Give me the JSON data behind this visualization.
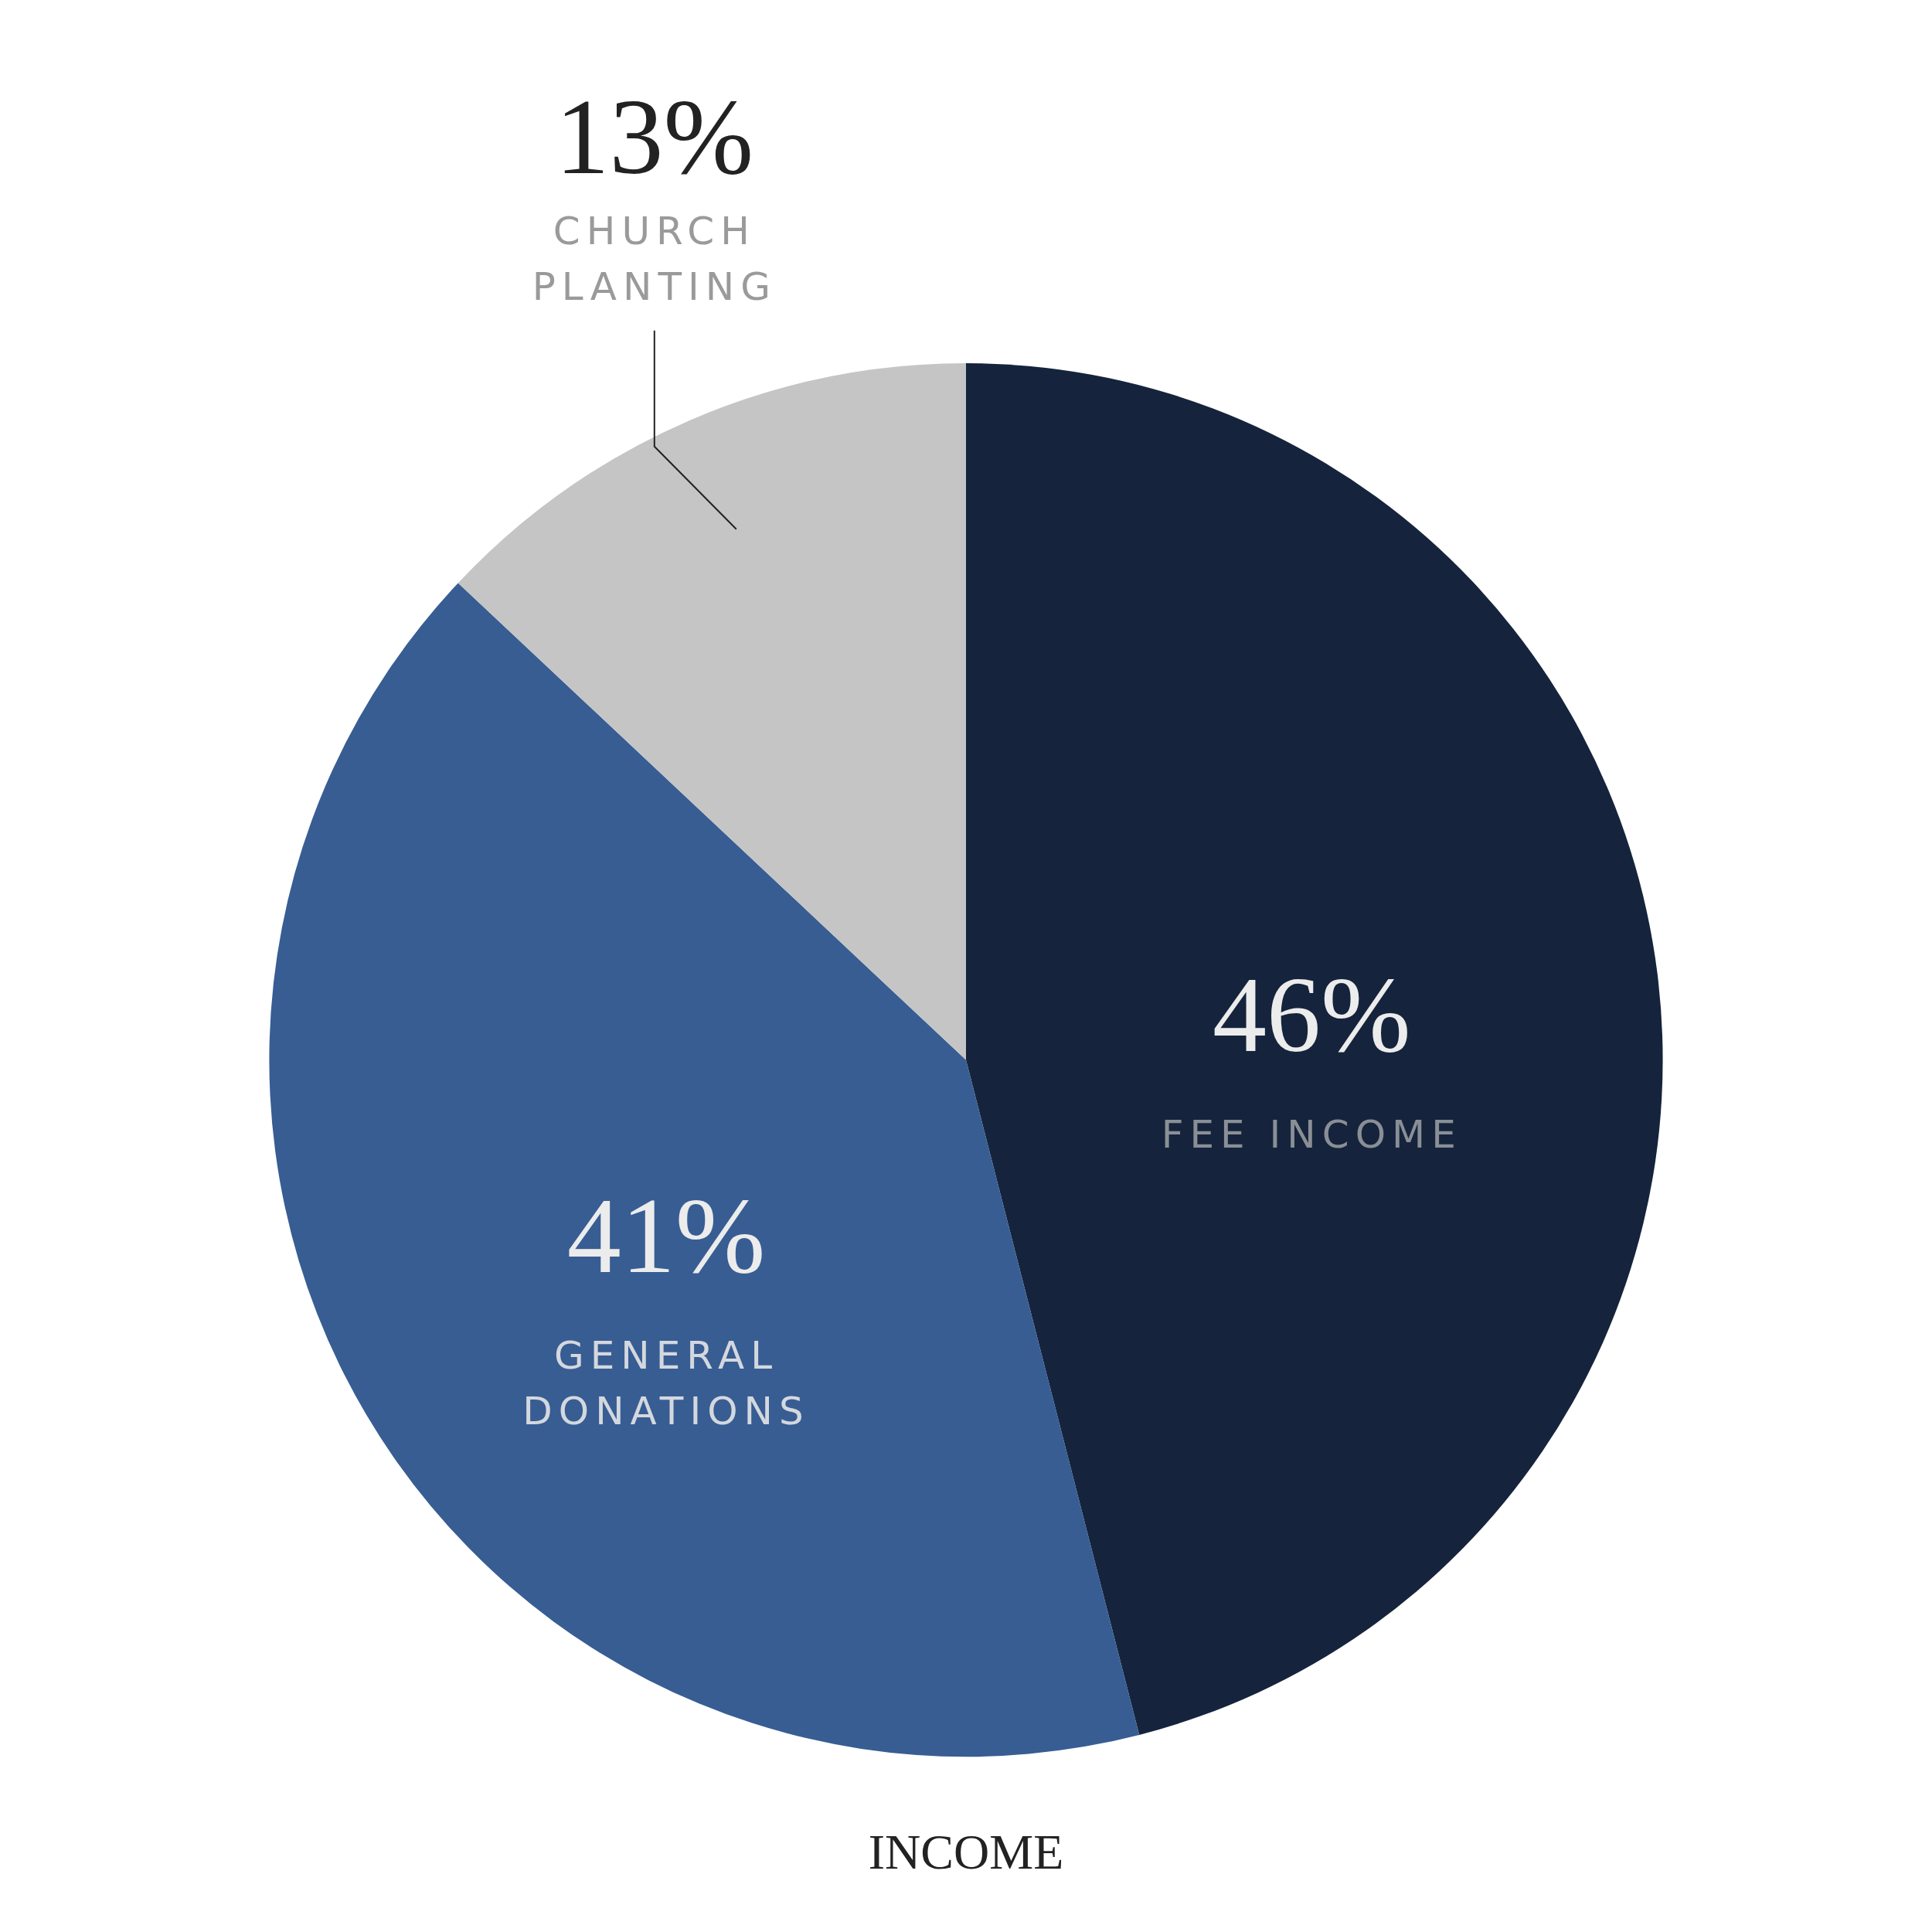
{
  "chart_data": {
    "type": "pie",
    "title": "INCOME",
    "categories": [
      "FEE INCOME",
      "GENERAL DONATIONS",
      "CHURCH PLANTING"
    ],
    "values": [
      46,
      41,
      13
    ],
    "value_labels": [
      "46%",
      "41%",
      "13%"
    ],
    "colors": [
      "#15243c",
      "#375d93",
      "#c5c5c5"
    ],
    "legend": false
  }
}
